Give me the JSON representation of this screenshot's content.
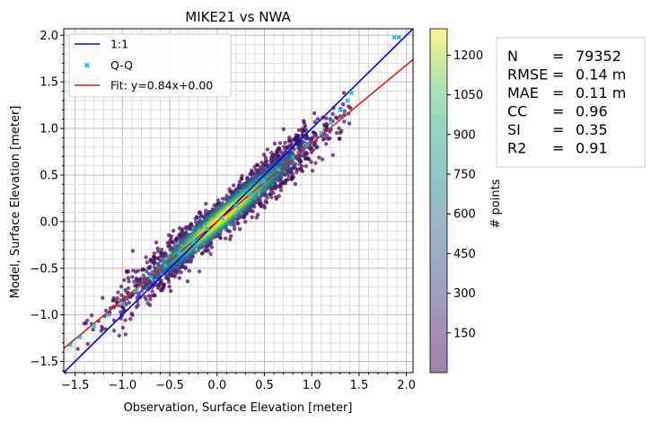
{
  "chart_data": {
    "type": "scatter",
    "title": "MIKE21 vs NWA",
    "xlabel": "Observation, Surface Elevation [meter]",
    "ylabel": "Model, Surface Elevation [meter]",
    "xlim": [
      -1.62,
      2.07
    ],
    "ylim": [
      -1.62,
      2.07
    ],
    "x_ticks": [
      -1.5,
      -1.0,
      -0.5,
      0.0,
      0.5,
      1.0,
      1.5,
      2.0
    ],
    "y_ticks": [
      -1.5,
      -1.0,
      -0.5,
      0.0,
      0.5,
      1.0,
      1.5,
      2.0
    ],
    "x_tick_labels": [
      "−1.5",
      "−1.0",
      "−0.5",
      "0.0",
      "0.5",
      "1.0",
      "1.5",
      "2.0"
    ],
    "y_tick_labels": [
      "−1.5",
      "−1.0",
      "−0.5",
      "0.0",
      "0.5",
      "1.0",
      "1.5",
      "2.0"
    ],
    "grid": true,
    "legend_position": "top-left",
    "series": [
      {
        "name": "1:1",
        "kind": "line",
        "color": "#0000ff",
        "slope": 1.0,
        "intercept": 0.0
      },
      {
        "name": "Q-Q",
        "kind": "markers",
        "color": "#17becf",
        "points": [
          [
            -1.55,
            -1.32
          ],
          [
            -1.45,
            -1.24
          ],
          [
            -1.3,
            -1.12
          ],
          [
            -1.15,
            -1.0
          ],
          [
            -1.0,
            -0.88
          ],
          [
            -0.85,
            -0.74
          ],
          [
            -0.7,
            -0.6
          ],
          [
            -0.55,
            -0.47
          ],
          [
            -0.4,
            -0.34
          ],
          [
            -0.25,
            -0.21
          ],
          [
            -0.1,
            -0.08
          ],
          [
            0.05,
            0.04
          ],
          [
            0.2,
            0.17
          ],
          [
            0.35,
            0.3
          ],
          [
            0.5,
            0.43
          ],
          [
            0.65,
            0.56
          ],
          [
            0.8,
            0.69
          ],
          [
            0.95,
            0.82
          ],
          [
            1.1,
            0.95
          ],
          [
            1.2,
            1.06
          ],
          [
            1.3,
            1.2
          ],
          [
            1.38,
            1.3
          ],
          [
            1.42,
            1.38
          ],
          [
            1.87,
            1.98
          ],
          [
            1.92,
            1.98
          ]
        ]
      },
      {
        "name": "Fit: y=0.84x+0.00",
        "kind": "line",
        "color": "#e41a1c",
        "slope": 0.84,
        "intercept": 0.0
      }
    ],
    "density": {
      "center_slope": 0.86,
      "spread_sd": 0.12,
      "n_points": 79352
    },
    "colorbar": {
      "label": "# points",
      "cmap": "viridis",
      "alpha": 0.5,
      "ticks": [
        150,
        300,
        450,
        600,
        750,
        900,
        1050,
        1200
      ],
      "tick_labels": [
        "150",
        "300",
        "450",
        "600",
        "750",
        "900",
        "1050",
        "1200"
      ],
      "vmin": 0,
      "vmax": 1300
    },
    "stats": [
      {
        "key": "N",
        "value": "79352"
      },
      {
        "key": "RMSE",
        "value": "0.14 m"
      },
      {
        "key": "MAE",
        "value": "0.11 m"
      },
      {
        "key": "CC",
        "value": "0.96"
      },
      {
        "key": "SI",
        "value": "0.35"
      },
      {
        "key": "R2",
        "value": "0.91"
      }
    ]
  }
}
